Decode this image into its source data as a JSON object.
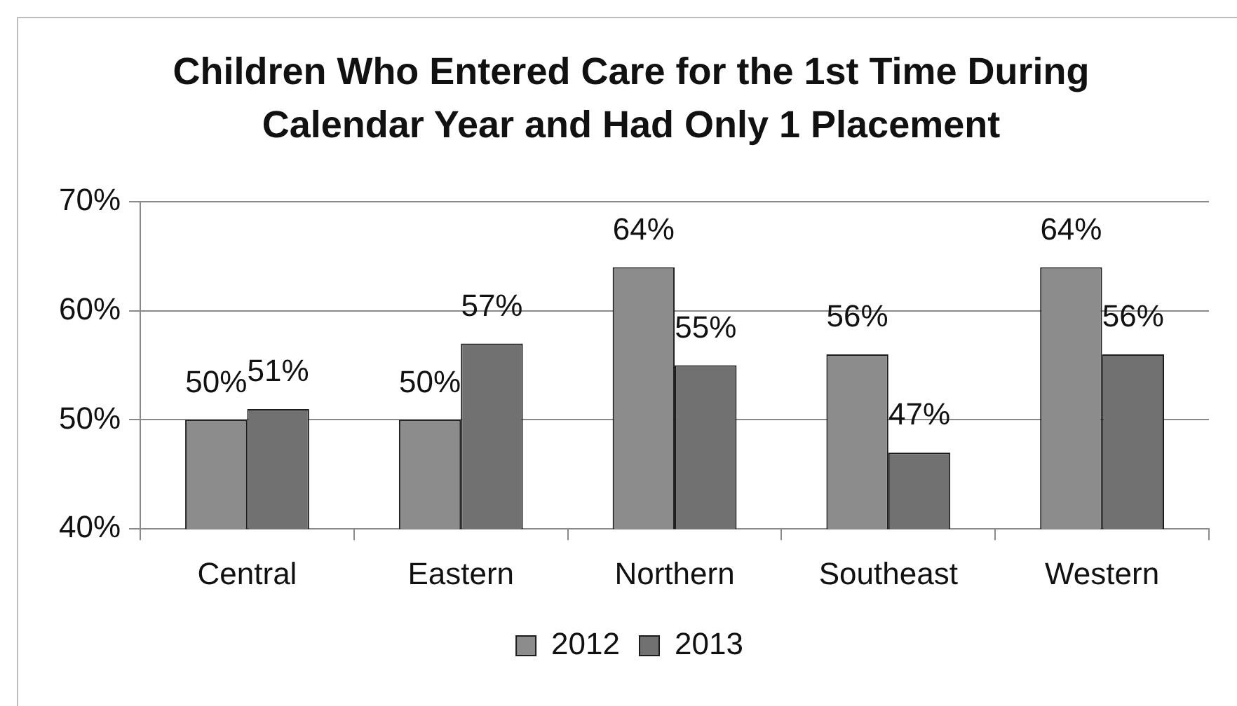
{
  "chart_data": {
    "type": "bar",
    "title": "Children Who Entered Care for the 1st Time During Calendar Year and Had Only 1 Placement",
    "categories": [
      "Central",
      "Eastern",
      "Northern",
      "Southeast",
      "Western"
    ],
    "series": [
      {
        "name": "2012",
        "color": "#8c8c8c",
        "values": [
          50,
          50,
          64,
          56,
          64
        ],
        "value_labels": [
          "50%",
          "50%",
          "64%",
          "56%",
          "64%"
        ]
      },
      {
        "name": "2013",
        "color": "#717171",
        "values": [
          51,
          57,
          55,
          47,
          56
        ],
        "value_labels": [
          "51%",
          "57%",
          "55%",
          "47%",
          "56%"
        ]
      }
    ],
    "ylim": [
      40,
      70
    ],
    "yticks": [
      {
        "value": 40,
        "label": "40%"
      },
      {
        "value": 50,
        "label": "50%"
      },
      {
        "value": 60,
        "label": "60%"
      },
      {
        "value": 70,
        "label": "70%"
      }
    ],
    "grid": "y",
    "legend": "bottom"
  }
}
